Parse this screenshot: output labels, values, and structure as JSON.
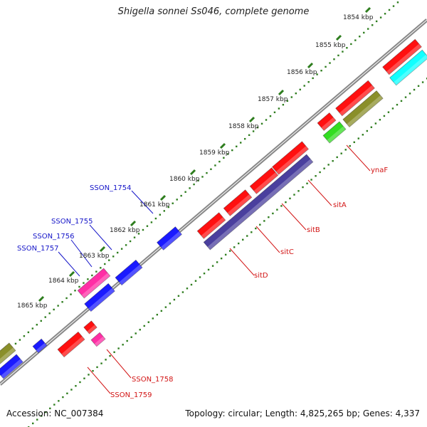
{
  "title": "Shigella sonnei Ss046, complete genome",
  "accession": "Accession: NC_007384",
  "topology": "Topology: circular; Length: 4,825,265 bp; Genes: 4,337",
  "colors": {
    "backbone": "#777777",
    "tick": "#2e7d1e",
    "tick_label": "#222222",
    "gene_label_blue": "#1414c8",
    "gene_label_red": "#d21414",
    "red": "#ff1010",
    "magenta": "#ff2ea5",
    "blue": "#1a1aff",
    "navy": "#4a3f9e",
    "olive": "#8a8f2a",
    "green": "#33dd22",
    "cyan": "#11ffff"
  },
  "tick_labels": [
    "1854 kbp",
    "1855 kbp",
    "1856 kbp",
    "1857 kbp",
    "1858 kbp",
    "1859 kbp",
    "1860 kbp",
    "1861 kbp",
    "1862 kbp",
    "1863 kbp",
    "1864 kbp",
    "1865 kbp"
  ],
  "gene_labels": [
    "SSON_1754",
    "SSON_1755",
    "SSON_1756",
    "SSON_1757",
    "ynaF",
    "sitA",
    "sitB",
    "sitC",
    "sitD",
    "SSON_1758",
    "SSON_1759"
  ]
}
